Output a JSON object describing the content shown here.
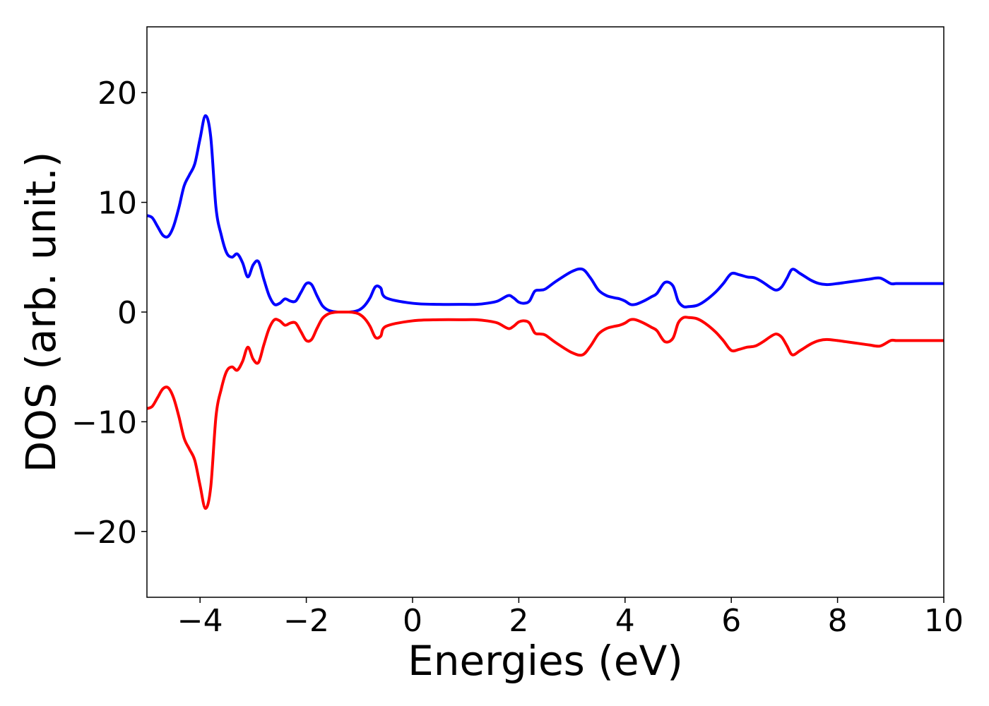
{
  "chart_data": {
    "type": "line",
    "title": "",
    "xlabel": "Energies (eV)",
    "ylabel": "DOS (arb. unit.)",
    "xlim": [
      -5,
      10
    ],
    "ylim": [
      -26,
      26
    ],
    "grid": false,
    "legend": "none",
    "x_ticks": [
      -4,
      -2,
      0,
      2,
      4,
      6,
      8,
      10
    ],
    "x_tick_labels": [
      "−4",
      "−2",
      "0",
      "2",
      "4",
      "6",
      "8",
      "10"
    ],
    "y_ticks": [
      20,
      10,
      0,
      -10,
      -20
    ],
    "y_tick_labels": [
      "20",
      "10",
      "0",
      "−10",
      "−20"
    ],
    "series": [
      {
        "color": "#0000ff",
        "x": [
          -5.0,
          -4.9,
          -4.8,
          -4.7,
          -4.6,
          -4.5,
          -4.4,
          -4.3,
          -4.2,
          -4.1,
          -4.0,
          -3.9,
          -3.8,
          -3.7,
          -3.6,
          -3.5,
          -3.4,
          -3.3,
          -3.2,
          -3.1,
          -3.0,
          -2.9,
          -2.8,
          -2.7,
          -2.6,
          -2.5,
          -2.4,
          -2.3,
          -2.2,
          -2.1,
          -2.0,
          -1.9,
          -1.8,
          -1.7,
          -1.6,
          -1.5,
          -1.4,
          -1.3,
          -1.2,
          -1.1,
          -1.0,
          -0.9,
          -0.8,
          -0.7,
          -0.6,
          -0.5,
          0.0,
          0.5,
          1.0,
          1.2,
          1.4,
          1.6,
          1.8,
          1.9,
          2.0,
          2.1,
          2.2,
          2.3,
          2.4,
          2.5,
          2.7,
          3.0,
          3.2,
          3.35,
          3.5,
          3.65,
          3.8,
          3.9,
          4.0,
          4.1,
          4.2,
          4.35,
          4.5,
          4.6,
          4.75,
          4.9,
          5.0,
          5.1,
          5.2,
          5.35,
          5.5,
          5.7,
          5.85,
          6.0,
          6.15,
          6.3,
          6.45,
          6.6,
          6.75,
          6.85,
          6.95,
          7.05,
          7.15,
          7.3,
          7.5,
          7.65,
          7.8,
          8.0,
          8.15,
          8.3,
          8.45,
          8.6,
          8.8,
          9.0,
          9.1,
          9.2,
          9.3,
          9.45,
          9.55,
          9.65,
          9.75,
          9.85,
          9.95,
          10.0
        ],
        "values": [
          8.8,
          8.6,
          7.8,
          7.0,
          6.9,
          7.8,
          9.5,
          11.5,
          12.5,
          13.5,
          15.8,
          17.9,
          16.0,
          9.5,
          7.0,
          5.4,
          5.0,
          5.3,
          4.5,
          3.2,
          4.3,
          4.6,
          3.0,
          1.5,
          0.7,
          0.8,
          1.2,
          1.0,
          1.0,
          1.8,
          2.6,
          2.5,
          1.5,
          0.6,
          0.2,
          0.05,
          0.0,
          0.0,
          0.0,
          0.05,
          0.2,
          0.6,
          1.3,
          2.3,
          2.2,
          1.3,
          0.8,
          0.7,
          0.7,
          0.7,
          0.8,
          1.0,
          1.5,
          1.3,
          0.9,
          0.8,
          1.0,
          1.9,
          2.0,
          2.1,
          2.8,
          3.7,
          3.9,
          3.1,
          2.0,
          1.5,
          1.3,
          1.2,
          1.0,
          0.7,
          0.7,
          1.0,
          1.4,
          1.7,
          2.7,
          2.4,
          1.0,
          0.5,
          0.5,
          0.6,
          1.0,
          1.8,
          2.6,
          3.5,
          3.4,
          3.2,
          3.1,
          2.7,
          2.2,
          2.0,
          2.3,
          3.1,
          3.9,
          3.5,
          2.9,
          2.6,
          2.5,
          2.6,
          2.7,
          2.8,
          2.9,
          3.0,
          3.1,
          2.6,
          2.6,
          2.6,
          2.6,
          2.6,
          2.6,
          2.6,
          2.6,
          2.6,
          2.6,
          2.6
        ]
      },
      {
        "color": "#ff0000",
        "x": [
          -5.0,
          -4.9,
          -4.8,
          -4.7,
          -4.6,
          -4.5,
          -4.4,
          -4.3,
          -4.2,
          -4.1,
          -4.0,
          -3.9,
          -3.8,
          -3.7,
          -3.6,
          -3.5,
          -3.4,
          -3.3,
          -3.2,
          -3.1,
          -3.0,
          -2.9,
          -2.8,
          -2.7,
          -2.6,
          -2.5,
          -2.4,
          -2.3,
          -2.2,
          -2.1,
          -2.0,
          -1.9,
          -1.8,
          -1.7,
          -1.6,
          -1.5,
          -1.4,
          -1.3,
          -1.2,
          -1.1,
          -1.0,
          -0.9,
          -0.8,
          -0.7,
          -0.6,
          -0.5,
          0.0,
          0.5,
          1.0,
          1.2,
          1.4,
          1.6,
          1.8,
          1.9,
          2.0,
          2.1,
          2.2,
          2.3,
          2.4,
          2.5,
          2.7,
          3.0,
          3.2,
          3.35,
          3.5,
          3.65,
          3.8,
          3.9,
          4.0,
          4.1,
          4.2,
          4.35,
          4.5,
          4.6,
          4.75,
          4.9,
          5.0,
          5.1,
          5.2,
          5.35,
          5.5,
          5.7,
          5.85,
          6.0,
          6.15,
          6.3,
          6.45,
          6.6,
          6.75,
          6.85,
          6.95,
          7.05,
          7.15,
          7.3,
          7.5,
          7.65,
          7.8,
          8.0,
          8.15,
          8.3,
          8.45,
          8.6,
          8.8,
          9.0,
          9.1,
          9.2,
          9.3,
          9.45,
          9.55,
          9.65,
          9.75,
          9.85,
          9.95,
          10.0
        ],
        "values": [
          -8.8,
          -8.6,
          -7.8,
          -7.0,
          -6.9,
          -7.8,
          -9.5,
          -11.5,
          -12.5,
          -13.5,
          -15.8,
          -17.9,
          -16.0,
          -9.5,
          -7.0,
          -5.4,
          -5.0,
          -5.3,
          -4.5,
          -3.2,
          -4.3,
          -4.6,
          -3.0,
          -1.5,
          -0.7,
          -0.8,
          -1.2,
          -1.0,
          -1.0,
          -1.8,
          -2.6,
          -2.5,
          -1.5,
          -0.6,
          -0.2,
          -0.05,
          0.0,
          0.0,
          0.0,
          -0.05,
          -0.2,
          -0.6,
          -1.3,
          -2.3,
          -2.2,
          -1.3,
          -0.8,
          -0.7,
          -0.7,
          -0.7,
          -0.8,
          -1.0,
          -1.5,
          -1.3,
          -0.9,
          -0.8,
          -1.0,
          -1.9,
          -2.0,
          -2.1,
          -2.8,
          -3.7,
          -3.9,
          -3.1,
          -2.0,
          -1.5,
          -1.3,
          -1.2,
          -1.0,
          -0.7,
          -0.7,
          -1.0,
          -1.4,
          -1.7,
          -2.7,
          -2.4,
          -1.0,
          -0.5,
          -0.5,
          -0.6,
          -1.0,
          -1.8,
          -2.6,
          -3.5,
          -3.4,
          -3.2,
          -3.1,
          -2.7,
          -2.2,
          -2.0,
          -2.3,
          -3.1,
          -3.9,
          -3.5,
          -2.9,
          -2.6,
          -2.5,
          -2.6,
          -2.7,
          -2.8,
          -2.9,
          -3.0,
          -3.1,
          -2.6,
          -2.6,
          -2.6,
          -2.6,
          -2.6,
          -2.6,
          -2.6,
          -2.6,
          -2.6,
          -2.6,
          -2.6
        ]
      }
    ]
  }
}
